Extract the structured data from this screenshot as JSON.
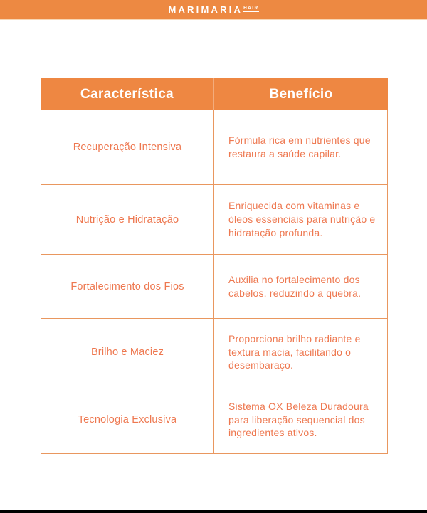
{
  "brand": {
    "name": "MARIMARIA",
    "suffix": "HAIR"
  },
  "colors": {
    "accent_orange": "#EE8742",
    "body_text_orange": "#EE7850",
    "border_orange": "#E9975F",
    "header_text": "#FFFFFF",
    "footer_bar": "#000000"
  },
  "table": {
    "headers": {
      "feature": "Característica",
      "benefit": "Benefício"
    },
    "rows": [
      {
        "feature": "Recuperação Intensiva",
        "benefit": "Fórmula rica em nutrientes que restaura a saúde capilar."
      },
      {
        "feature": "Nutrição e Hidratação",
        "benefit": "Enriquecida com vitaminas e óleos essenciais para nutrição e hidratação profunda."
      },
      {
        "feature": "Fortalecimento dos Fios",
        "benefit": "Auxilia no fortalecimento dos cabelos, reduzindo a quebra."
      },
      {
        "feature": "Brilho e Maciez",
        "benefit": "Proporciona brilho radiante e textura macia, facilitando o desembaraço."
      },
      {
        "feature": "Tecnologia Exclusiva",
        "benefit": "Sistema OX Beleza Duradoura para liberação sequencial dos ingredientes ativos."
      }
    ]
  }
}
